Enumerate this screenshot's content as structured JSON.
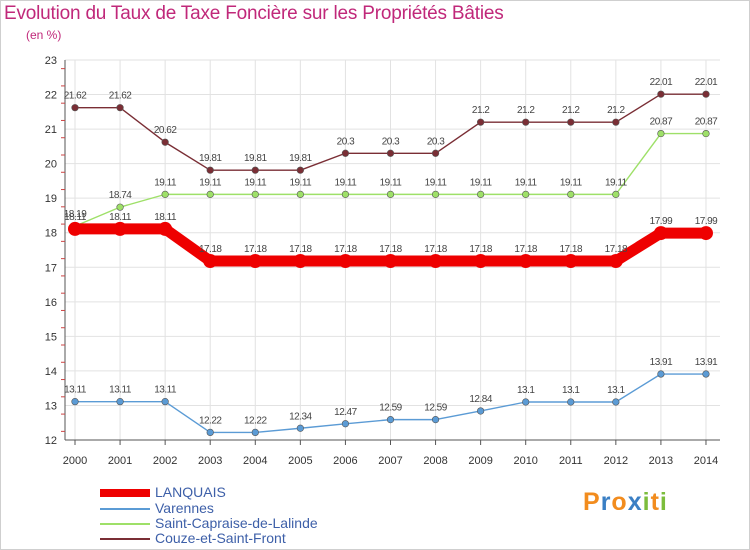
{
  "chart_data": {
    "type": "line",
    "title": "Evolution du Taux de Taxe Foncière sur les Propriétés Bâties",
    "subtitle": "(en %)",
    "xlabel": "",
    "ylabel": "",
    "x": [
      "2000",
      "2001",
      "2002",
      "2003",
      "2004",
      "2005",
      "2006",
      "2007",
      "2008",
      "2009",
      "2010",
      "2011",
      "2012",
      "2013",
      "2014"
    ],
    "ylim": [
      12,
      23
    ],
    "yticks": [
      "12",
      "13",
      "14",
      "15",
      "16",
      "17",
      "18",
      "19",
      "20",
      "21",
      "22",
      "23"
    ],
    "grid": true,
    "legend_position": "bottom-left",
    "series": [
      {
        "name": "LANQUAIS",
        "color": "#ee0000",
        "values": [
          18.11,
          18.11,
          18.11,
          17.18,
          17.18,
          17.18,
          17.18,
          17.18,
          17.18,
          17.18,
          17.18,
          17.18,
          17.18,
          17.99,
          17.99
        ],
        "labels": [
          "18.11",
          "18.11",
          "18.11",
          "17.18",
          "17.18",
          "17.18",
          "17.18",
          "17.18",
          "17.18",
          "17.18",
          "17.18",
          "17.18",
          "17.18",
          "17.99",
          "17.99"
        ]
      },
      {
        "name": "Varennes",
        "color": "#5b9bd5",
        "values": [
          13.11,
          13.11,
          13.11,
          12.22,
          12.22,
          12.34,
          12.47,
          12.59,
          12.59,
          12.84,
          13.1,
          13.1,
          13.1,
          13.91,
          13.91
        ],
        "labels": [
          "13.11",
          "13.11",
          "13.11",
          "12.22",
          "12.22",
          "12.34",
          "12.47",
          "12.59",
          "12.59",
          "12.84",
          "13.1",
          "13.1",
          "13.1",
          "13.91",
          "13.91"
        ]
      },
      {
        "name": "Saint-Capraise-de-Lalinde",
        "color": "#9ee068",
        "values": [
          18.19,
          18.74,
          19.11,
          19.11,
          19.11,
          19.11,
          19.11,
          19.11,
          19.11,
          19.11,
          19.11,
          19.11,
          19.11,
          20.87,
          20.87
        ],
        "labels": [
          "18.19",
          "18.74",
          "19.11",
          "19.11",
          "19.11",
          "19.11",
          "19.11",
          "19.11",
          "19.11",
          "19.11",
          "19.11",
          "19.11",
          "19.11",
          "20.87",
          "20.87"
        ]
      },
      {
        "name": "Couze-et-Saint-Front",
        "color": "#7a2e35",
        "values": [
          21.62,
          21.62,
          20.62,
          19.81,
          19.81,
          19.81,
          20.3,
          20.3,
          20.3,
          21.2,
          21.2,
          21.2,
          21.2,
          22.01,
          22.01
        ],
        "labels": [
          "21.62",
          "21.62",
          "20.62",
          "19.81",
          "19.81",
          "19.81",
          "20.3",
          "20.3",
          "20.3",
          "21.2",
          "21.2",
          "21.2",
          "21.2",
          "22.01",
          "22.01"
        ]
      }
    ]
  },
  "branding": {
    "logo_letters": [
      "P",
      "r",
      "o",
      "x",
      "i",
      "t",
      "i"
    ],
    "logo_colors": [
      "#f28c1e",
      "#3a7fc4",
      "#f28c1e",
      "#3a7fc4",
      "#7cbd3c",
      "#f28c1e",
      "#7cbd3c"
    ]
  }
}
